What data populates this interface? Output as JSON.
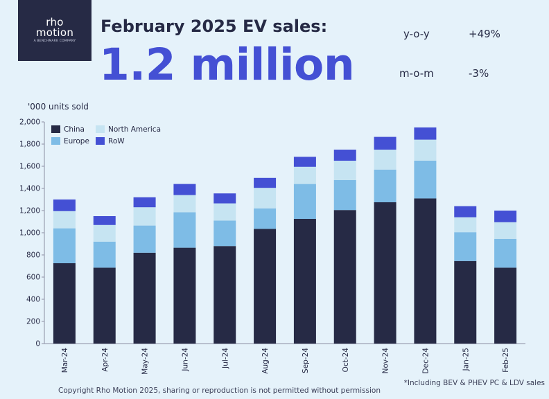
{
  "logo": {
    "line1": "rho",
    "line2": "motion",
    "tagline": "A BENCHMARK COMPANY"
  },
  "header": {
    "title": "February 2025 EV sales:",
    "big_number": "1.2 million",
    "stats": [
      {
        "label": "y-o-y",
        "value": "+49%"
      },
      {
        "label": "m-o-m",
        "value": "-3%"
      }
    ]
  },
  "colors": {
    "china": "#262a45",
    "europe": "#7ebce6",
    "north_america": "#c6e4f2",
    "row": "#4450d4",
    "accent": "#4450d4"
  },
  "chart_data": {
    "type": "bar",
    "stacked": true,
    "ylabel": "'000 units sold",
    "ylim": [
      0,
      2000
    ],
    "yticks": [
      0,
      200,
      400,
      600,
      800,
      1000,
      1200,
      1400,
      1600,
      1800,
      2000
    ],
    "ytick_labels": [
      "0",
      "200",
      "400",
      "600",
      "800",
      "1,000",
      "1,200",
      "1,400",
      "1,600",
      "1,800",
      "2,000"
    ],
    "categories": [
      "Mar-24",
      "Apr-24",
      "May-24",
      "Jun-24",
      "Jul-24",
      "Aug-24",
      "Sep-24",
      "Oct-24",
      "Nov-24",
      "Dec-24",
      "Jan-25",
      "Feb-25"
    ],
    "legend_position": "top-left",
    "series": [
      {
        "name": "China",
        "color_key": "china",
        "values": [
          725,
          685,
          820,
          865,
          880,
          1035,
          1125,
          1205,
          1275,
          1310,
          745,
          685
        ]
      },
      {
        "name": "Europe",
        "color_key": "europe",
        "values": [
          315,
          235,
          245,
          320,
          230,
          185,
          315,
          270,
          295,
          340,
          260,
          260
        ]
      },
      {
        "name": "North America",
        "color_key": "north_america",
        "values": [
          155,
          150,
          165,
          155,
          155,
          185,
          155,
          175,
          180,
          190,
          135,
          150
        ]
      },
      {
        "name": "RoW",
        "color_key": "row",
        "values": [
          105,
          80,
          90,
          100,
          90,
          90,
          90,
          100,
          115,
          110,
          100,
          105
        ]
      }
    ]
  },
  "footer": {
    "copyright": "Copyright Rho Motion 2025, sharing or reproduction is not permitted without permission",
    "note": "*Including BEV & PHEV PC & LDV sales"
  }
}
